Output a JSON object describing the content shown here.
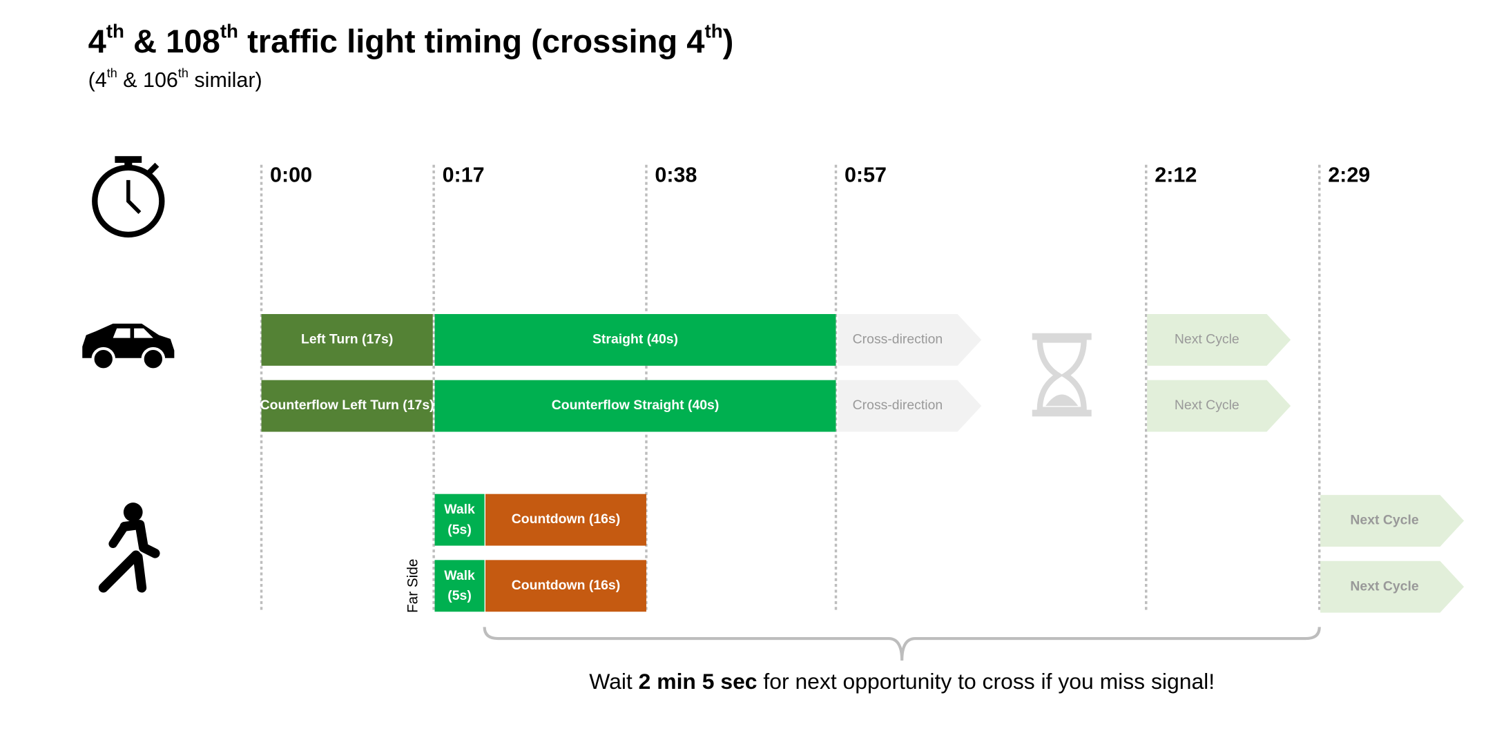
{
  "title_parts": [
    "4",
    "th",
    " & 108",
    "th",
    " traffic light timing (crossing 4",
    "th",
    ")"
  ],
  "subtitle_parts": [
    "(4",
    "th",
    " & 106",
    "th",
    " similar)"
  ],
  "time_labels": [
    "0:00",
    "0:17",
    "0:38",
    "0:57",
    "2:12",
    "2:29"
  ],
  "vehicle_rows": [
    [
      "Left Turn (17s)",
      "Straight (40s)",
      "Cross-direction",
      "Next Cycle"
    ],
    [
      "Counterflow Left Turn (17s)",
      "Counterflow Straight (40s)",
      "Cross-direction",
      "Next Cycle"
    ]
  ],
  "pedestrian_rows": [
    {
      "walk": [
        "Walk",
        "(5s)"
      ],
      "countdown": "Countdown (16s)",
      "next": "Next Cycle"
    },
    {
      "walk": [
        "Walk",
        "(5s)"
      ],
      "countdown": "Countdown (16s)",
      "next": "Next Cycle"
    }
  ],
  "far_side_label": "Far Side",
  "footer_parts": [
    "Wait ",
    "2 min 5 sec",
    " for next opportunity to cross if you miss signal!"
  ]
}
